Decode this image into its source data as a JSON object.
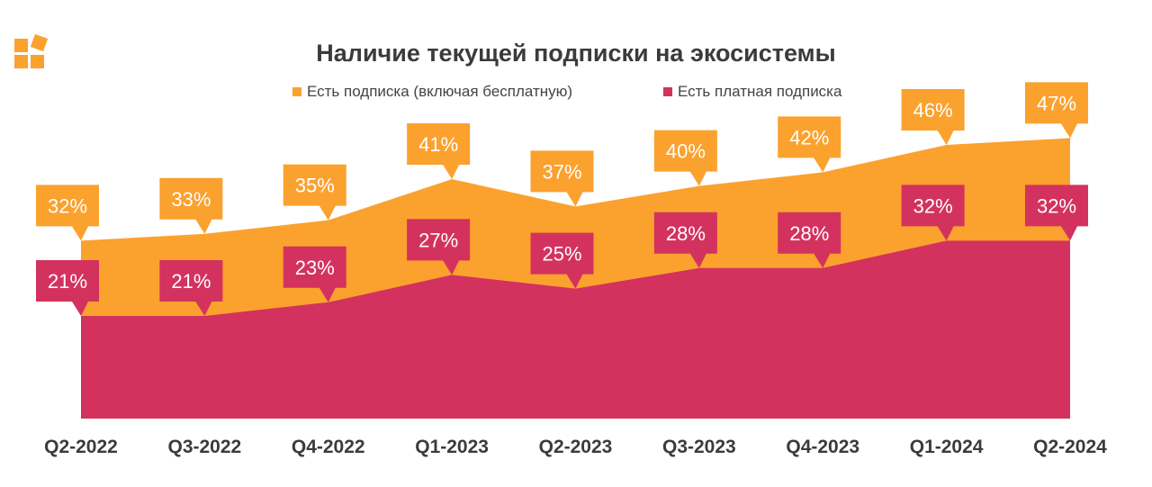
{
  "chart_data": {
    "type": "area",
    "title": "Наличие текущей подписки на экосистемы",
    "categories": [
      "Q2-2022",
      "Q3-2022",
      "Q4-2022",
      "Q1-2023",
      "Q2-2023",
      "Q3-2023",
      "Q4-2023",
      "Q1-2024",
      "Q2-2024"
    ],
    "series": [
      {
        "name": "Есть подписка (включая бесплатную)",
        "color": "#FBA12E",
        "values": [
          32,
          33,
          35,
          41,
          37,
          40,
          42,
          46,
          47
        ]
      },
      {
        "name": "Есть платная подписка",
        "color": "#D3325F",
        "values": [
          21,
          21,
          23,
          27,
          25,
          28,
          28,
          32,
          32
        ]
      }
    ],
    "value_suffix": "%",
    "ylim": [
      6,
      50
    ],
    "legend": "top",
    "grid": false
  },
  "logo": {
    "color": "#FBA12E"
  }
}
